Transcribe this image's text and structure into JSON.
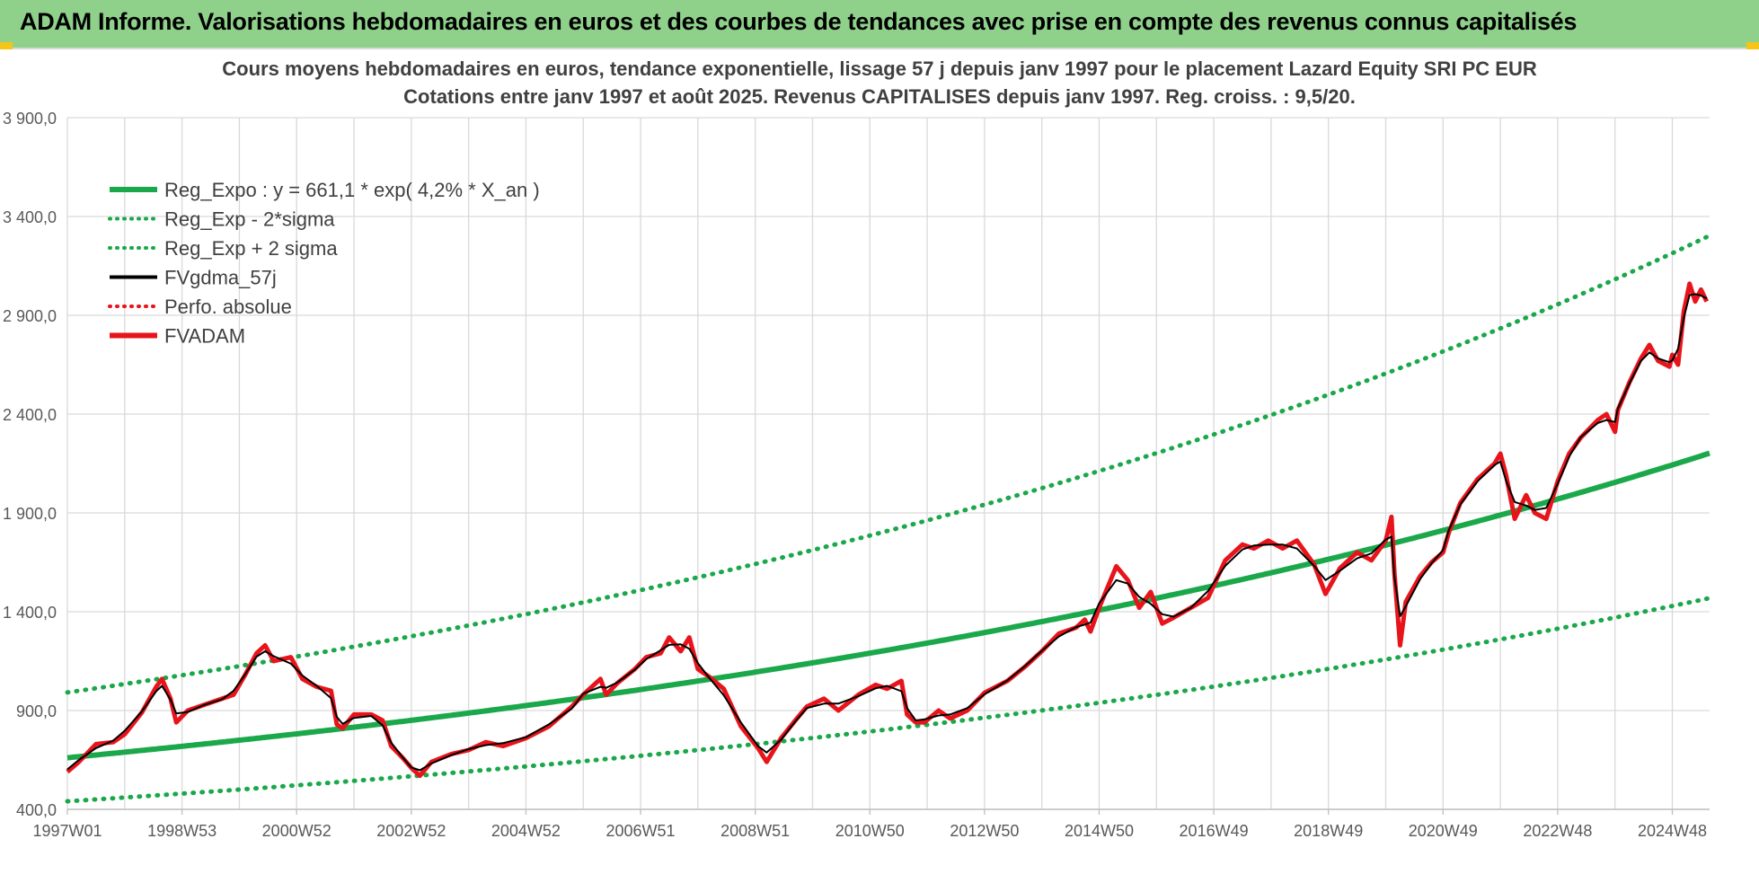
{
  "header": {
    "title": "ADAM Informe. Valorisations hebdomadaires en euros et des courbes de tendances avec prise en compte des revenus connus capitalisés"
  },
  "colors": {
    "banner": "#8fd18b",
    "reg": "#1aa84a",
    "black": "#000000",
    "red": "#e8141b",
    "grid": "#d9d9d9"
  },
  "chart_data": {
    "type": "line",
    "title": "Cours moyens hebdomadaires en euros, tendance exponentielle, lissage 57 j depuis janv 1997 pour le placement Lazard Equity SRI PC EUR",
    "subtitle": "Cotations entre janv 1997 et août 2025. Revenus CAPITALISES depuis janv 1997. Reg. croiss. : 9,5/20.",
    "ylim": [
      400,
      3900
    ],
    "yticks": [
      "3 900,0",
      "3 400,0",
      "2 900,0",
      "2 400,0",
      "1 900,0",
      "1 400,0",
      "900,0",
      "400,0"
    ],
    "yticks_values": [
      3900,
      3400,
      2900,
      2400,
      1900,
      1400,
      900,
      400
    ],
    "xlim": [
      1997.0,
      2025.65
    ],
    "xticks": [
      {
        "label": "1997W01",
        "x": 1997.0
      },
      {
        "label": "1998W53",
        "x": 1999.0
      },
      {
        "label": "2000W52",
        "x": 2001.0
      },
      {
        "label": "2002W52",
        "x": 2003.0
      },
      {
        "label": "2004W52",
        "x": 2005.0
      },
      {
        "label": "2006W51",
        "x": 2007.0
      },
      {
        "label": "2008W51",
        "x": 2009.0
      },
      {
        "label": "2010W50",
        "x": 2011.0
      },
      {
        "label": "2012W50",
        "x": 2013.0
      },
      {
        "label": "2014W50",
        "x": 2015.0
      },
      {
        "label": "2016W49",
        "x": 2017.0
      },
      {
        "label": "2018W49",
        "x": 2019.0
      },
      {
        "label": "2020W49",
        "x": 2021.0
      },
      {
        "label": "2022W48",
        "x": 2023.0
      },
      {
        "label": "2024W48",
        "x": 2025.0
      }
    ],
    "grid": true,
    "legend_placement": "top-left",
    "legend": [
      {
        "label": "Reg_Expo : y = 661,1 * exp( 4,2% *  X_an )",
        "color": "#1aa84a",
        "style": "solid"
      },
      {
        "label": "Reg_Exp - 2*sigma",
        "color": "#1aa84a",
        "style": "dotted"
      },
      {
        "label": "Reg_Exp + 2 sigma",
        "color": "#1aa84a",
        "style": "dotted"
      },
      {
        "label": "FVgdma_57j",
        "color": "#000000",
        "style": "solid"
      },
      {
        "label": "Perfo. absolue",
        "color": "#e8141b",
        "style": "dotted"
      },
      {
        "label": "FVADAM",
        "color": "#e8141b",
        "style": "solid"
      }
    ],
    "regression": {
      "a": 661.1,
      "rate": 0.042,
      "lower_factor": 0.667,
      "upper_factor": 1.5
    },
    "series": [
      {
        "name": "FVADAM",
        "points": [
          [
            1997.0,
            590
          ],
          [
            1997.2,
            640
          ],
          [
            1997.5,
            730
          ],
          [
            1997.8,
            740
          ],
          [
            1998.0,
            780
          ],
          [
            1998.3,
            890
          ],
          [
            1998.55,
            1020
          ],
          [
            1998.65,
            1060
          ],
          [
            1998.8,
            960
          ],
          [
            1998.9,
            840
          ],
          [
            1999.1,
            900
          ],
          [
            1999.4,
            930
          ],
          [
            1999.7,
            960
          ],
          [
            1999.9,
            980
          ],
          [
            2000.1,
            1080
          ],
          [
            2000.3,
            1190
          ],
          [
            2000.45,
            1230
          ],
          [
            2000.6,
            1150
          ],
          [
            2000.9,
            1170
          ],
          [
            2001.1,
            1060
          ],
          [
            2001.35,
            1020
          ],
          [
            2001.6,
            1000
          ],
          [
            2001.7,
            830
          ],
          [
            2001.8,
            810
          ],
          [
            2002.0,
            880
          ],
          [
            2002.3,
            880
          ],
          [
            2002.5,
            850
          ],
          [
            2002.65,
            720
          ],
          [
            2002.85,
            660
          ],
          [
            2003.0,
            610
          ],
          [
            2003.15,
            570
          ],
          [
            2003.35,
            640
          ],
          [
            2003.7,
            680
          ],
          [
            2004.0,
            700
          ],
          [
            2004.3,
            740
          ],
          [
            2004.6,
            720
          ],
          [
            2005.0,
            760
          ],
          [
            2005.4,
            820
          ],
          [
            2005.8,
            920
          ],
          [
            2006.0,
            980
          ],
          [
            2006.3,
            1060
          ],
          [
            2006.4,
            980
          ],
          [
            2006.6,
            1040
          ],
          [
            2006.9,
            1110
          ],
          [
            2007.1,
            1170
          ],
          [
            2007.35,
            1190
          ],
          [
            2007.5,
            1270
          ],
          [
            2007.7,
            1200
          ],
          [
            2007.85,
            1270
          ],
          [
            2008.0,
            1110
          ],
          [
            2008.2,
            1070
          ],
          [
            2008.45,
            1010
          ],
          [
            2008.75,
            820
          ],
          [
            2009.05,
            710
          ],
          [
            2009.2,
            640
          ],
          [
            2009.45,
            760
          ],
          [
            2009.7,
            850
          ],
          [
            2009.9,
            920
          ],
          [
            2010.2,
            960
          ],
          [
            2010.45,
            900
          ],
          [
            2010.8,
            980
          ],
          [
            2011.1,
            1030
          ],
          [
            2011.3,
            1010
          ],
          [
            2011.55,
            1050
          ],
          [
            2011.65,
            880
          ],
          [
            2011.8,
            840
          ],
          [
            2011.95,
            840
          ],
          [
            2012.2,
            900
          ],
          [
            2012.4,
            860
          ],
          [
            2012.7,
            900
          ],
          [
            2013.0,
            990
          ],
          [
            2013.4,
            1050
          ],
          [
            2013.7,
            1120
          ],
          [
            2014.0,
            1200
          ],
          [
            2014.3,
            1290
          ],
          [
            2014.6,
            1320
          ],
          [
            2014.75,
            1360
          ],
          [
            2014.85,
            1300
          ],
          [
            2015.0,
            1420
          ],
          [
            2015.3,
            1630
          ],
          [
            2015.5,
            1560
          ],
          [
            2015.7,
            1420
          ],
          [
            2015.9,
            1500
          ],
          [
            2016.1,
            1340
          ],
          [
            2016.3,
            1370
          ],
          [
            2016.6,
            1420
          ],
          [
            2016.9,
            1470
          ],
          [
            2017.2,
            1660
          ],
          [
            2017.5,
            1740
          ],
          [
            2017.7,
            1720
          ],
          [
            2017.95,
            1760
          ],
          [
            2018.2,
            1720
          ],
          [
            2018.45,
            1760
          ],
          [
            2018.75,
            1640
          ],
          [
            2018.95,
            1490
          ],
          [
            2019.2,
            1620
          ],
          [
            2019.5,
            1700
          ],
          [
            2019.75,
            1660
          ],
          [
            2020.0,
            1760
          ],
          [
            2020.1,
            1880
          ],
          [
            2020.15,
            1600
          ],
          [
            2020.25,
            1230
          ],
          [
            2020.35,
            1450
          ],
          [
            2020.6,
            1580
          ],
          [
            2020.8,
            1650
          ],
          [
            2021.0,
            1700
          ],
          [
            2021.1,
            1800
          ],
          [
            2021.3,
            1950
          ],
          [
            2021.6,
            2070
          ],
          [
            2021.9,
            2150
          ],
          [
            2022.0,
            2200
          ],
          [
            2022.1,
            2090
          ],
          [
            2022.25,
            1870
          ],
          [
            2022.45,
            1990
          ],
          [
            2022.6,
            1900
          ],
          [
            2022.8,
            1870
          ],
          [
            2023.0,
            2060
          ],
          [
            2023.2,
            2200
          ],
          [
            2023.4,
            2280
          ],
          [
            2023.7,
            2370
          ],
          [
            2023.85,
            2400
          ],
          [
            2024.0,
            2310
          ],
          [
            2024.05,
            2420
          ],
          [
            2024.25,
            2560
          ],
          [
            2024.45,
            2680
          ],
          [
            2024.6,
            2750
          ],
          [
            2024.75,
            2670
          ],
          [
            2024.95,
            2640
          ],
          [
            2025.0,
            2700
          ],
          [
            2025.1,
            2650
          ],
          [
            2025.2,
            2920
          ],
          [
            2025.3,
            3060
          ],
          [
            2025.4,
            2970
          ],
          [
            2025.5,
            3030
          ],
          [
            2025.6,
            2970
          ]
        ]
      }
    ]
  }
}
